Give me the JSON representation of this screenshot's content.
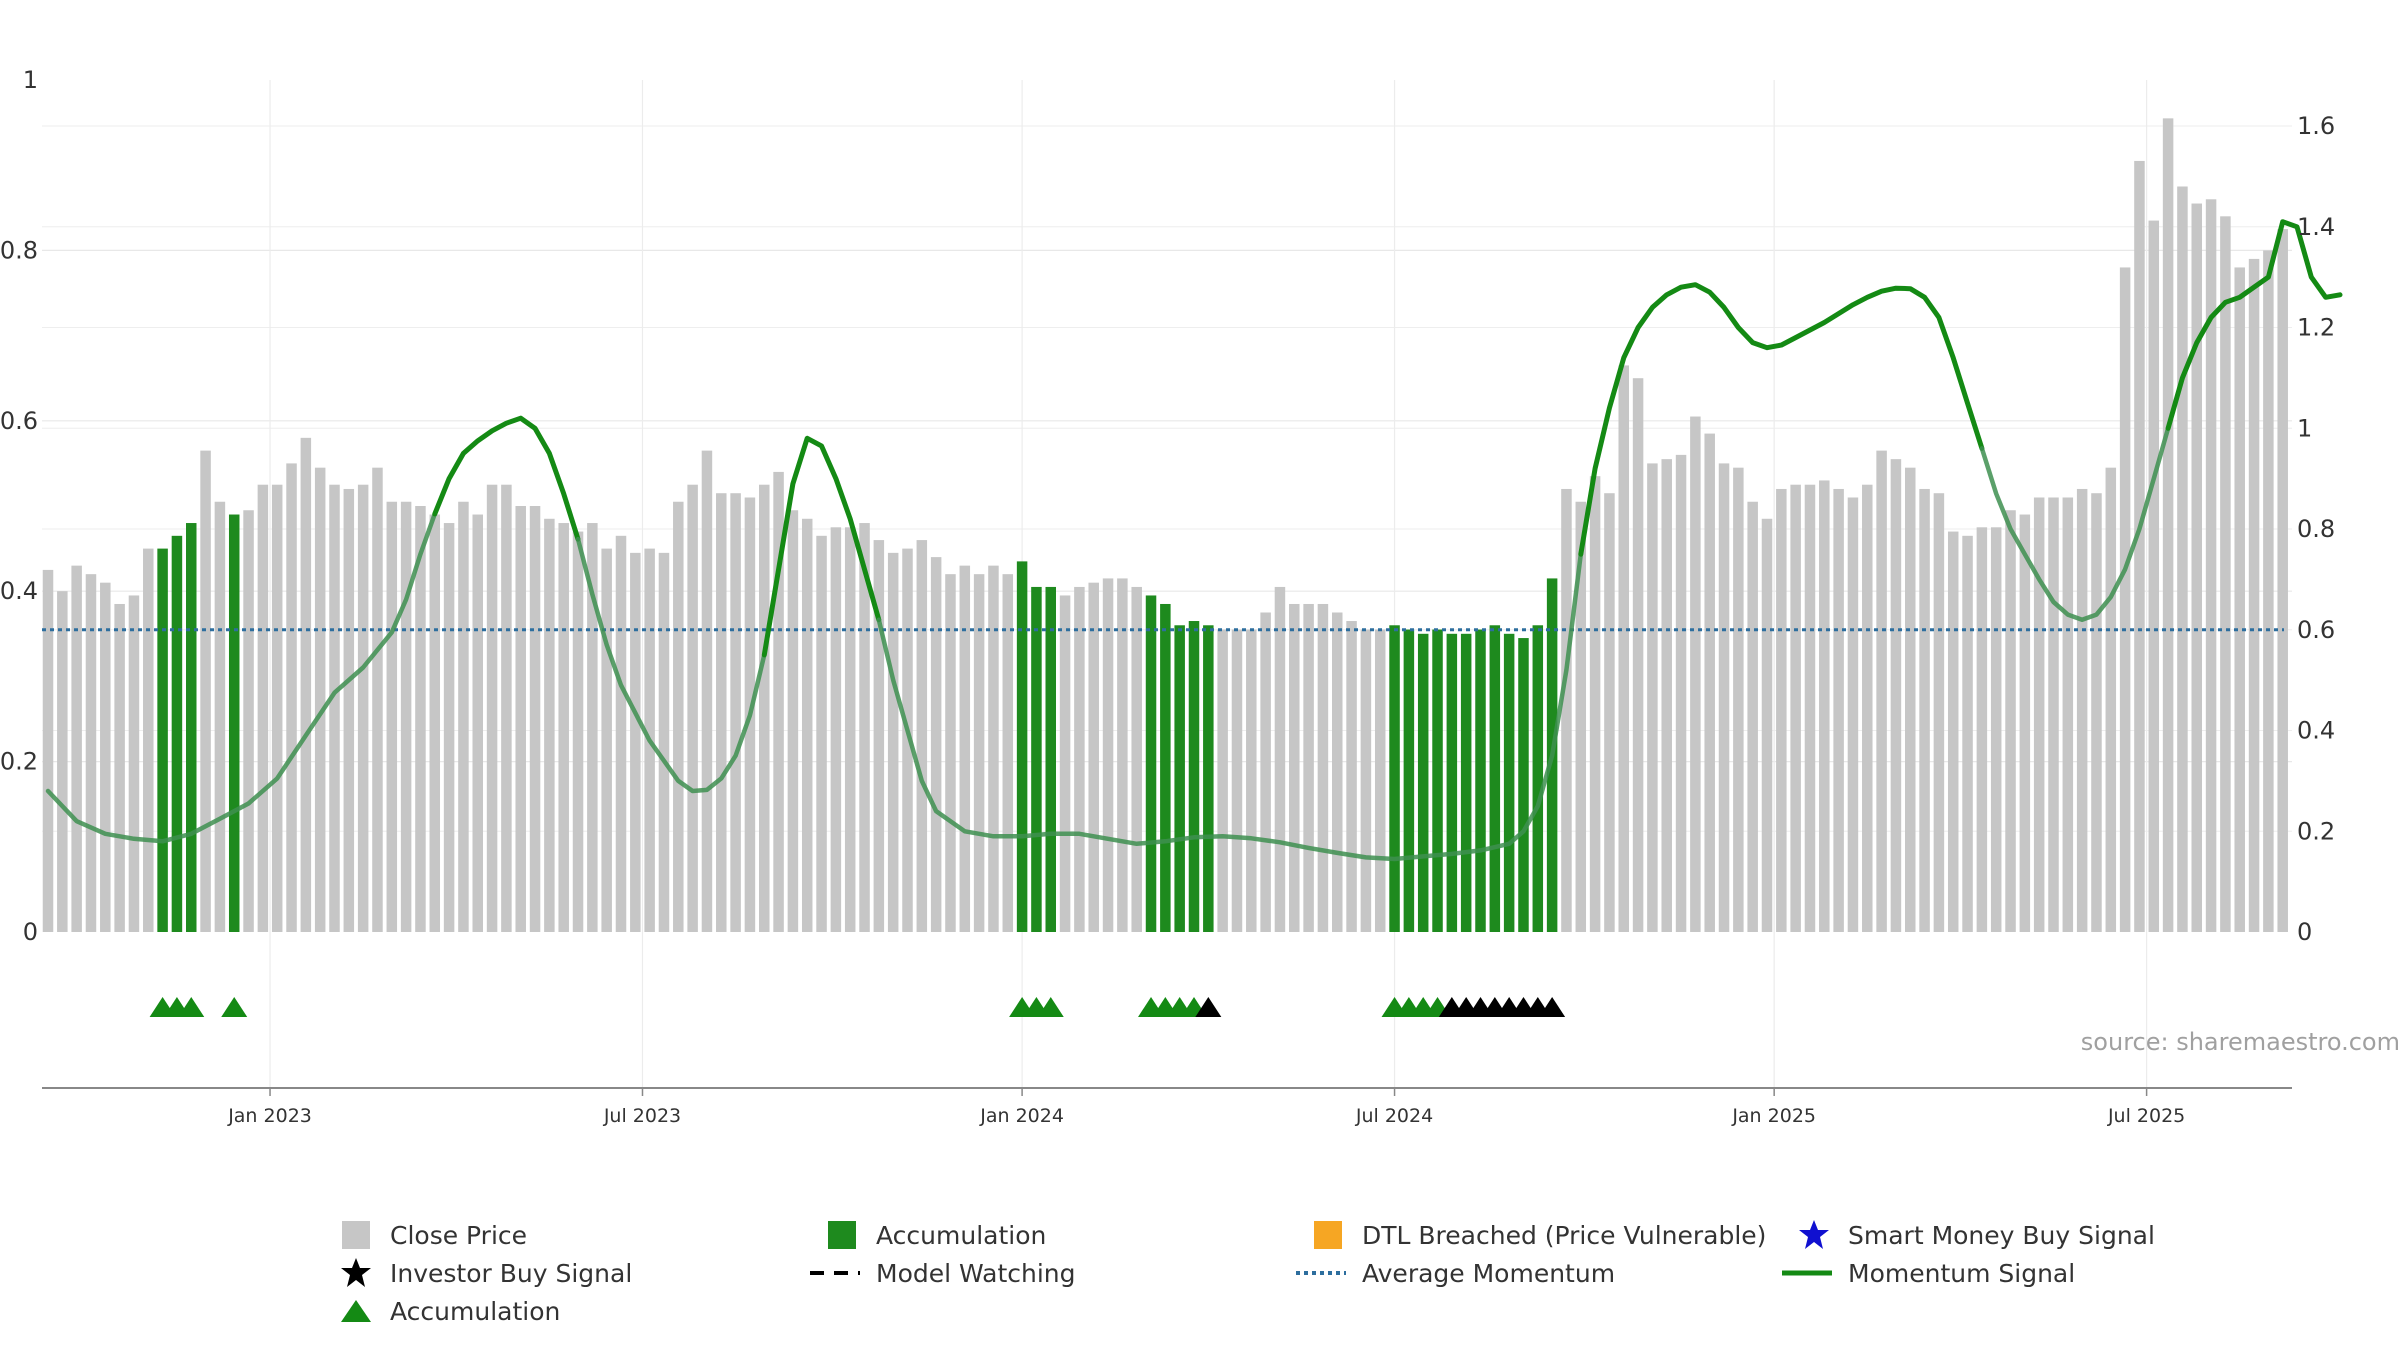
{
  "chart_data": {
    "type": "bar",
    "source": "source: sharemaestro.com",
    "left_axis": {
      "ticks": [
        "0",
        "0.2",
        "0.4",
        "0.6",
        "0.8",
        "1"
      ],
      "ylim": [
        0,
        1
      ]
    },
    "right_axis": {
      "ticks": [
        "0",
        "0.2",
        "0.4",
        "0.6",
        "0.8",
        "1",
        "1.2",
        "1.4",
        "1.6"
      ],
      "ylim": [
        0,
        1.69
      ]
    },
    "x_ticks": [
      {
        "label": "Jan 2023",
        "week": 15.5
      },
      {
        "label": "Jul 2023",
        "week": 41.5
      },
      {
        "label": "Jan 2024",
        "week": 68
      },
      {
        "label": "Jul 2024",
        "week": 94
      },
      {
        "label": "Jan 2025",
        "week": 120.5
      },
      {
        "label": "Jul 2025",
        "week": 146.5
      }
    ],
    "close_price": [
      0.425,
      0.4,
      0.43,
      0.42,
      0.41,
      0.385,
      0.395,
      0.45,
      0.45,
      0.465,
      0.48,
      0.565,
      0.505,
      0.49,
      0.495,
      0.525,
      0.525,
      0.55,
      0.58,
      0.545,
      0.525,
      0.52,
      0.525,
      0.545,
      0.505,
      0.505,
      0.5,
      0.49,
      0.48,
      0.505,
      0.49,
      0.525,
      0.525,
      0.5,
      0.5,
      0.485,
      0.48,
      0.47,
      0.48,
      0.45,
      0.465,
      0.445,
      0.45,
      0.445,
      0.505,
      0.525,
      0.565,
      0.515,
      0.515,
      0.51,
      0.525,
      0.54,
      0.495,
      0.485,
      0.465,
      0.475,
      0.475,
      0.48,
      0.46,
      0.445,
      0.45,
      0.46,
      0.44,
      0.42,
      0.43,
      0.42,
      0.43,
      0.42,
      0.435,
      0.405,
      0.405,
      0.395,
      0.405,
      0.41,
      0.415,
      0.415,
      0.405,
      0.395,
      0.385,
      0.36,
      0.365,
      0.36,
      0.355,
      0.355,
      0.355,
      0.375,
      0.405,
      0.385,
      0.385,
      0.385,
      0.375,
      0.365,
      0.355,
      0.355,
      0.36,
      0.355,
      0.35,
      0.355,
      0.35,
      0.35,
      0.355,
      0.36,
      0.35,
      0.345,
      0.36,
      0.415,
      0.52,
      0.505,
      0.535,
      0.515,
      0.665,
      0.65,
      0.55,
      0.555,
      0.56,
      0.605,
      0.585,
      0.55,
      0.545,
      0.505,
      0.485,
      0.52,
      0.525,
      0.525,
      0.53,
      0.52,
      0.51,
      0.525,
      0.565,
      0.555,
      0.545,
      0.52,
      0.515,
      0.47,
      0.465,
      0.475,
      0.475,
      0.495,
      0.49,
      0.51,
      0.51,
      0.51,
      0.52,
      0.515,
      0.545,
      0.78,
      0.905,
      0.835,
      0.955,
      0.875,
      0.855,
      0.86,
      0.84,
      0.78,
      0.79,
      0.8,
      0.825
    ],
    "accumulation_weeks": [
      8,
      9,
      10,
      13,
      68,
      69,
      70,
      77,
      78,
      79,
      80,
      81,
      94,
      95,
      96,
      97,
      98,
      99,
      100,
      101,
      102,
      103,
      104,
      105
    ],
    "accumulation_triangles": [
      8,
      9,
      10,
      13,
      68,
      69,
      70,
      77,
      78,
      79,
      80,
      94,
      95,
      96,
      97
    ],
    "investor_buy_signals": [
      81,
      98,
      99,
      100,
      101,
      102,
      103,
      104,
      105
    ],
    "average_momentum": 0.6,
    "momentum_signal": [
      [
        0,
        0.28
      ],
      [
        2,
        0.22
      ],
      [
        4,
        0.195
      ],
      [
        6,
        0.185
      ],
      [
        8,
        0.18
      ],
      [
        10,
        0.195
      ],
      [
        12,
        0.225
      ],
      [
        14,
        0.255
      ],
      [
        16,
        0.305
      ],
      [
        18,
        0.39
      ],
      [
        20,
        0.475
      ],
      [
        22,
        0.525
      ],
      [
        24,
        0.595
      ],
      [
        25,
        0.66
      ],
      [
        26,
        0.75
      ],
      [
        27,
        0.83
      ],
      [
        28,
        0.9
      ],
      [
        29,
        0.95
      ],
      [
        30,
        0.975
      ],
      [
        31,
        0.995
      ],
      [
        32,
        1.01
      ],
      [
        33,
        1.02
      ],
      [
        34,
        1.0
      ],
      [
        35,
        0.95
      ],
      [
        36,
        0.87
      ],
      [
        37,
        0.78
      ],
      [
        38,
        0.67
      ],
      [
        39,
        0.57
      ],
      [
        40,
        0.49
      ],
      [
        42,
        0.38
      ],
      [
        44,
        0.3
      ],
      [
        45,
        0.28
      ],
      [
        46,
        0.282
      ],
      [
        47,
        0.305
      ],
      [
        48,
        0.35
      ],
      [
        49,
        0.43
      ],
      [
        50,
        0.55
      ],
      [
        51,
        0.72
      ],
      [
        52,
        0.89
      ],
      [
        53,
        0.98
      ],
      [
        54,
        0.965
      ],
      [
        55,
        0.9
      ],
      [
        56,
        0.82
      ],
      [
        57,
        0.72
      ],
      [
        58,
        0.62
      ],
      [
        59,
        0.5
      ],
      [
        60,
        0.4
      ],
      [
        61,
        0.3
      ],
      [
        62,
        0.24
      ],
      [
        64,
        0.2
      ],
      [
        66,
        0.19
      ],
      [
        68,
        0.19
      ],
      [
        70,
        0.195
      ],
      [
        72,
        0.195
      ],
      [
        74,
        0.185
      ],
      [
        76,
        0.175
      ],
      [
        78,
        0.18
      ],
      [
        80,
        0.188
      ],
      [
        82,
        0.19
      ],
      [
        84,
        0.186
      ],
      [
        86,
        0.178
      ],
      [
        88,
        0.167
      ],
      [
        90,
        0.157
      ],
      [
        92,
        0.148
      ],
      [
        94,
        0.145
      ],
      [
        96,
        0.15
      ],
      [
        98,
        0.155
      ],
      [
        100,
        0.162
      ],
      [
        102,
        0.175
      ],
      [
        103,
        0.2
      ],
      [
        104,
        0.25
      ],
      [
        105,
        0.35
      ],
      [
        106,
        0.52
      ],
      [
        107,
        0.75
      ],
      [
        108,
        0.92
      ],
      [
        109,
        1.04
      ],
      [
        110,
        1.14
      ],
      [
        111,
        1.2
      ],
      [
        112,
        1.24
      ],
      [
        113,
        1.265
      ],
      [
        114,
        1.28
      ],
      [
        115,
        1.285
      ],
      [
        116,
        1.27
      ],
      [
        117,
        1.24
      ],
      [
        118,
        1.2
      ],
      [
        119,
        1.17
      ],
      [
        120,
        1.16
      ],
      [
        121,
        1.165
      ],
      [
        122,
        1.18
      ],
      [
        124,
        1.21
      ],
      [
        126,
        1.245
      ],
      [
        127,
        1.26
      ],
      [
        128,
        1.272
      ],
      [
        129,
        1.278
      ],
      [
        130,
        1.277
      ],
      [
        131,
        1.26
      ],
      [
        132,
        1.22
      ],
      [
        133,
        1.14
      ],
      [
        134,
        1.05
      ],
      [
        135,
        0.96
      ],
      [
        136,
        0.87
      ],
      [
        137,
        0.8
      ],
      [
        138,
        0.75
      ],
      [
        139,
        0.7
      ],
      [
        140,
        0.655
      ],
      [
        141,
        0.63
      ],
      [
        142,
        0.62
      ],
      [
        143,
        0.63
      ],
      [
        144,
        0.665
      ],
      [
        145,
        0.72
      ],
      [
        146,
        0.8
      ],
      [
        147,
        0.9
      ],
      [
        148,
        1.0
      ],
      [
        149,
        1.1
      ],
      [
        150,
        1.17
      ],
      [
        151,
        1.22
      ],
      [
        152,
        1.25
      ],
      [
        153,
        1.26
      ],
      [
        154,
        1.28
      ],
      [
        155,
        1.3
      ],
      [
        156,
        1.41
      ],
      [
        157,
        1.4
      ],
      [
        158,
        1.3
      ],
      [
        159,
        1.26
      ],
      [
        160,
        1.265
      ]
    ],
    "momentum_faded_ranges": [
      [
        0,
        26
      ],
      [
        37,
        49
      ],
      [
        58,
        106
      ],
      [
        135,
        147
      ]
    ]
  },
  "legend": [
    {
      "label": "Close Price",
      "symbol": "gray-square"
    },
    {
      "label": "Accumulation",
      "symbol": "green-square"
    },
    {
      "label": "DTL Breached (Price Vulnerable)",
      "symbol": "orange-square"
    },
    {
      "label": "Smart Money Buy Signal",
      "symbol": "blue-star"
    },
    {
      "label": "Investor Buy Signal",
      "symbol": "black-star"
    },
    {
      "label": "Model Watching",
      "symbol": "black-dash"
    },
    {
      "label": "Average Momentum",
      "symbol": "blue-dotted"
    },
    {
      "label": "Momentum Signal",
      "symbol": "green-line"
    },
    {
      "label": "Accumulation",
      "symbol": "green-triangle"
    }
  ],
  "colors": {
    "close_price": "#c6c6c6",
    "accumulation": "#1e8a1e",
    "dtl": "#f6a623",
    "smart_money": "#1010d0",
    "investor": "#000000",
    "avg_momentum": "#2d6e9e",
    "momentum": "#148a14",
    "momentum_faded": "#3e8f50"
  }
}
